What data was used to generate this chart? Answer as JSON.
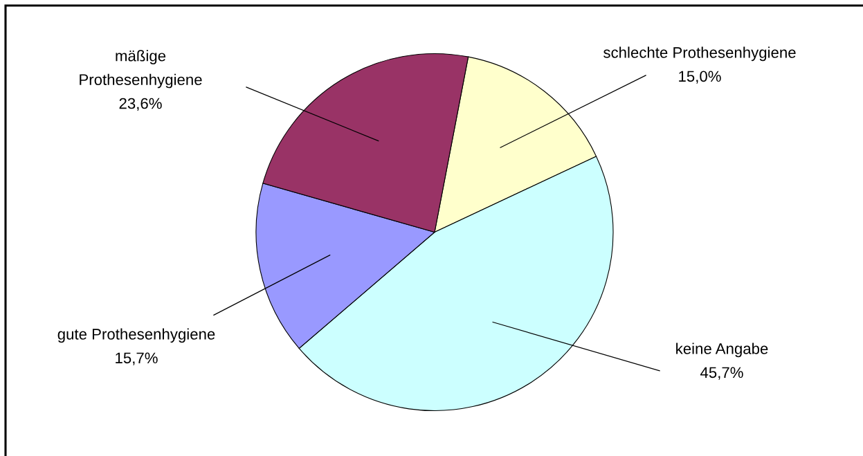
{
  "chart_data": {
    "type": "pie",
    "categories": [
      "schlechte Prothesenhygiene",
      "keine Angabe",
      "gute Prothesenhygiene",
      "mäßige Prothesenhygiene"
    ],
    "values": [
      15.0,
      45.7,
      15.7,
      23.6
    ],
    "value_labels": [
      "15,0%",
      "45,7%",
      "15,7%",
      "23,6%"
    ],
    "colors": [
      "#ffffcc",
      "#ccffff",
      "#9999ff",
      "#993366"
    ]
  }
}
